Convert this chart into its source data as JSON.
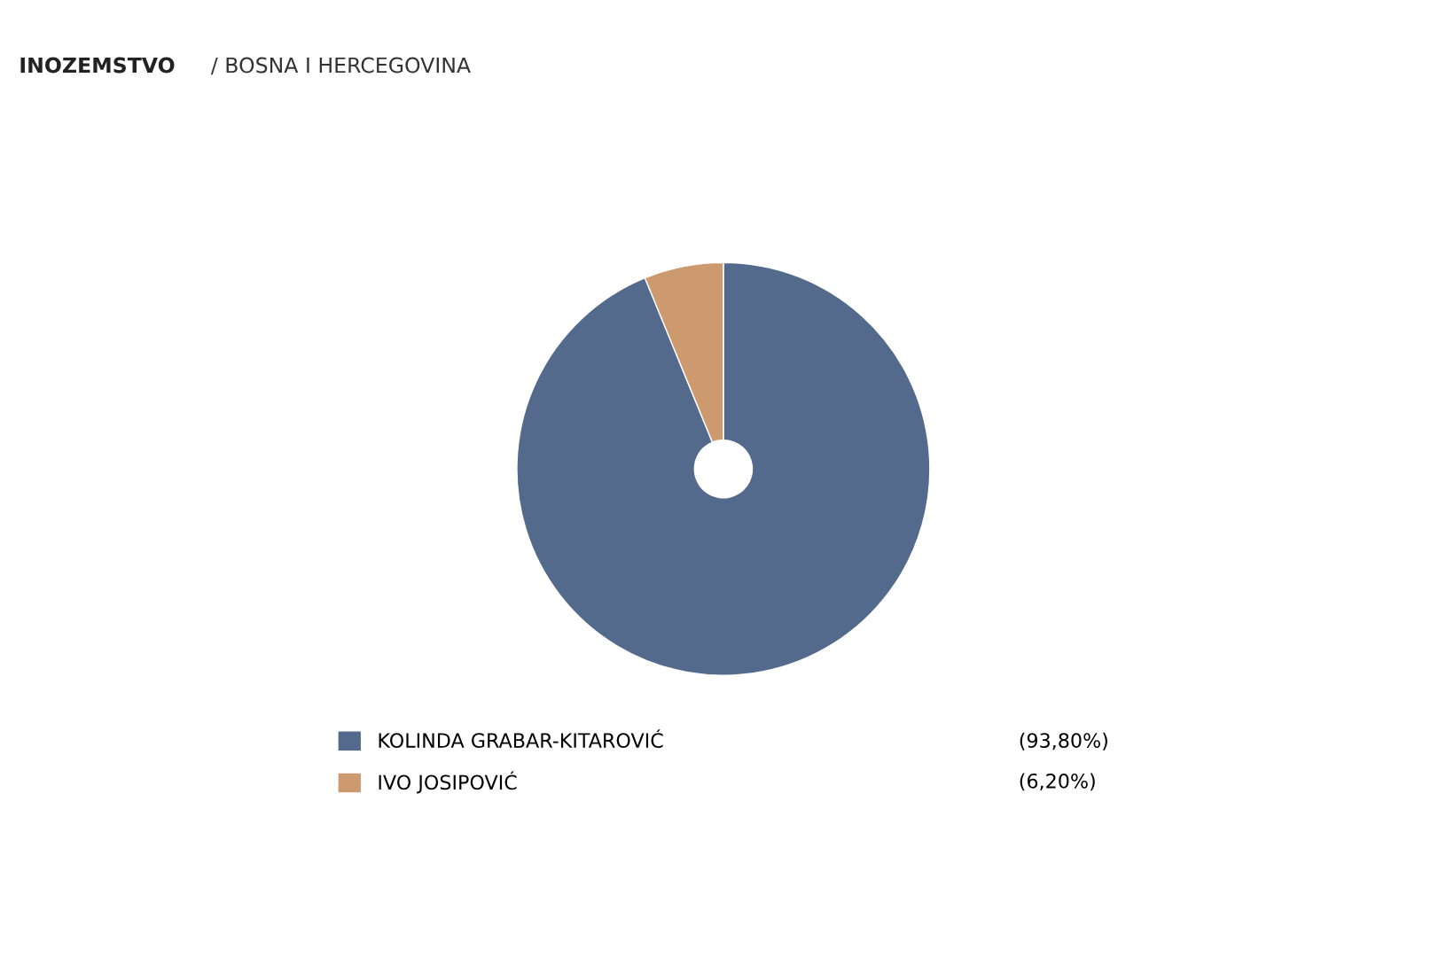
{
  "chart_data": {
    "type": "donut",
    "title": "INOZEMSTVO",
    "subtitle": "/ BOSNA I HERCEGOVINA",
    "categories": [
      "KOLINDA GRABAR-KITAROVIĆ",
      "IVO JOSIPOVIĆ"
    ],
    "values": [
      93.8,
      6.2
    ],
    "colors": [
      "#536a8c",
      "#cc9a6e"
    ],
    "value_labels": [
      "(93,80%)",
      "(6,20%)"
    ],
    "legend": "bottom"
  }
}
